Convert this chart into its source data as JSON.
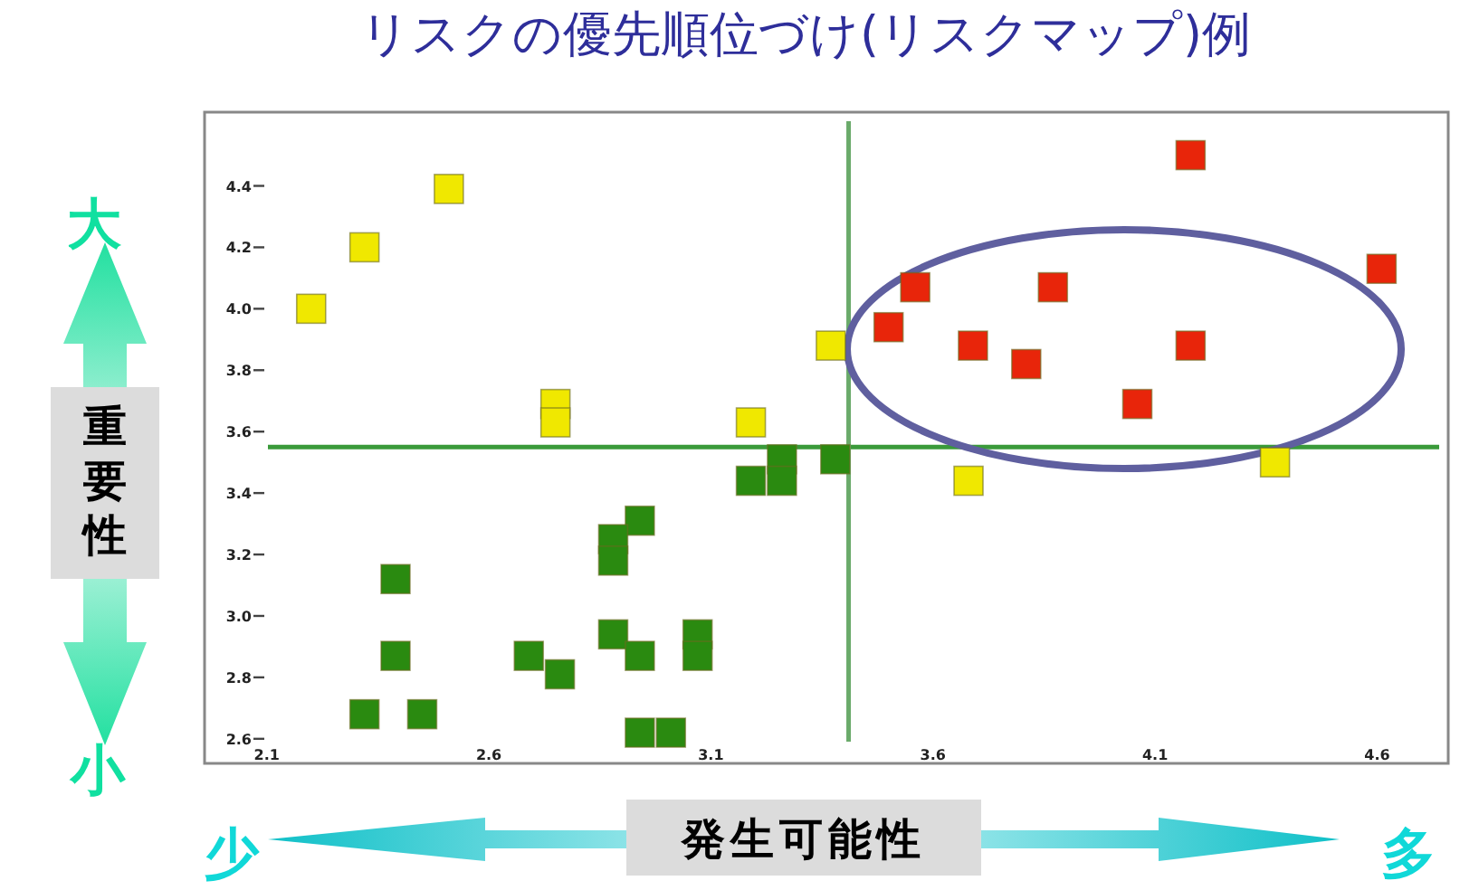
{
  "chart_data": {
    "type": "scatter",
    "title": "リスクの優先順位づけ(リスクマップ)例",
    "xlabel": "発生可能性",
    "ylabel": "重要性",
    "marker": "square",
    "xlim": [
      1.96,
      4.76
    ],
    "ylim": [
      2.52,
      4.64
    ],
    "xticks": [
      2.1,
      2.6,
      3.1,
      3.6,
      4.1,
      4.6
    ],
    "yticks": [
      2.6,
      2.8,
      {
        "value": 3,
        "label": "3.0"
      },
      3.2,
      3.4,
      3.6,
      3.8,
      {
        "value": 4,
        "label": "4.0"
      },
      4.2,
      4.4
    ],
    "series": [
      {
        "color": "#f0e800",
        "x": [
          2.2,
          2.32,
          2.51,
          2.75,
          2.75,
          3.19,
          3.37,
          3.68,
          4.37
        ],
        "values": [
          4.0,
          4.2,
          4.39,
          3.69,
          3.63,
          3.63,
          3.88,
          3.44,
          3.5
        ]
      },
      {
        "color": "#e8250a",
        "x": [
          4.18,
          3.56,
          3.87,
          3.5,
          3.69,
          3.81,
          4.06,
          4.18,
          4.61
        ],
        "values": [
          4.5,
          4.07,
          4.07,
          3.94,
          3.88,
          3.82,
          3.69,
          3.88,
          4.13
        ]
      },
      {
        "color": "#2a8a10",
        "x": [
          3.38,
          3.26,
          3.19,
          3.26,
          2.94,
          2.88,
          2.88,
          2.39,
          2.39,
          2.32,
          2.45,
          2.69,
          2.76,
          2.88,
          2.94,
          3.07,
          3.07,
          2.94,
          3.01
        ],
        "values": [
          3.51,
          3.51,
          3.44,
          3.44,
          3.31,
          3.25,
          3.18,
          3.12,
          2.87,
          2.68,
          2.68,
          2.87,
          2.81,
          2.94,
          2.87,
          2.94,
          2.87,
          2.62,
          2.62
        ]
      }
    ],
    "ref_lines": [
      {
        "axis": "y",
        "value": 3.55,
        "color": "#3a9a3a"
      },
      {
        "axis": "x",
        "value": 3.41,
        "color": "#6aaa6a"
      }
    ],
    "annotations": [
      "大",
      "小",
      "少",
      "多"
    ]
  }
}
